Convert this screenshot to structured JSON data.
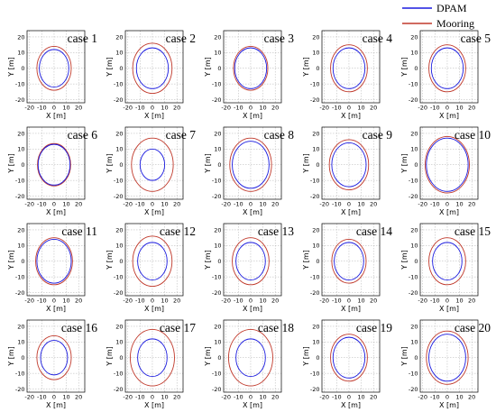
{
  "legend": {
    "entries": [
      {
        "label": "DPAM",
        "color": "#1a1adf"
      },
      {
        "label": "Mooring",
        "color": "#c0392b"
      }
    ]
  },
  "chart_data": {
    "type": "scatter",
    "description_type": "small-multiples",
    "xlabel": "X [m]",
    "ylabel": "Y [m]",
    "xlim": [
      -22,
      25
    ],
    "ylim": [
      -22,
      24
    ],
    "xticks": [
      -20,
      -10,
      0,
      10,
      20
    ],
    "yticks": [
      -20,
      -10,
      0,
      10,
      20
    ],
    "grid": true,
    "legend_position": "top-right",
    "series_names": [
      "DPAM",
      "Mooring"
    ],
    "panels": [
      {
        "title": "case 1",
        "dpam_radius": 12,
        "mooring_radius": 14
      },
      {
        "title": "case 2",
        "dpam_radius": 13,
        "mooring_radius": 16
      },
      {
        "title": "case 3",
        "dpam_radius": 13,
        "mooring_radius": 14
      },
      {
        "title": "case 4",
        "dpam_radius": 13,
        "mooring_radius": 15
      },
      {
        "title": "case 5",
        "dpam_radius": 13,
        "mooring_radius": 15
      },
      {
        "title": "case 6",
        "dpam_radius": 13,
        "mooring_radius": 13.5
      },
      {
        "title": "case 7",
        "dpam_radius": 10,
        "mooring_radius": 17
      },
      {
        "title": "case 8",
        "dpam_radius": 15,
        "mooring_radius": 17
      },
      {
        "title": "case 9",
        "dpam_radius": 14,
        "mooring_radius": 16
      },
      {
        "title": "case 10",
        "dpam_radius": 17,
        "mooring_radius": 18
      },
      {
        "title": "case 11",
        "dpam_radius": 14,
        "mooring_radius": 15
      },
      {
        "title": "case 12",
        "dpam_radius": 12,
        "mooring_radius": 16
      },
      {
        "title": "case 13",
        "dpam_radius": 12,
        "mooring_radius": 15
      },
      {
        "title": "case 14",
        "dpam_radius": 12,
        "mooring_radius": 14
      },
      {
        "title": "case 15",
        "dpam_radius": 12,
        "mooring_radius": 15
      },
      {
        "title": "case 16",
        "dpam_radius": 11,
        "mooring_radius": 14
      },
      {
        "title": "case 17",
        "dpam_radius": 12,
        "mooring_radius": 18
      },
      {
        "title": "case 18",
        "dpam_radius": 12,
        "mooring_radius": 18
      },
      {
        "title": "case 19",
        "dpam_radius": 13,
        "mooring_radius": 15
      },
      {
        "title": "case 20",
        "dpam_radius": 15,
        "mooring_radius": 17
      }
    ]
  }
}
